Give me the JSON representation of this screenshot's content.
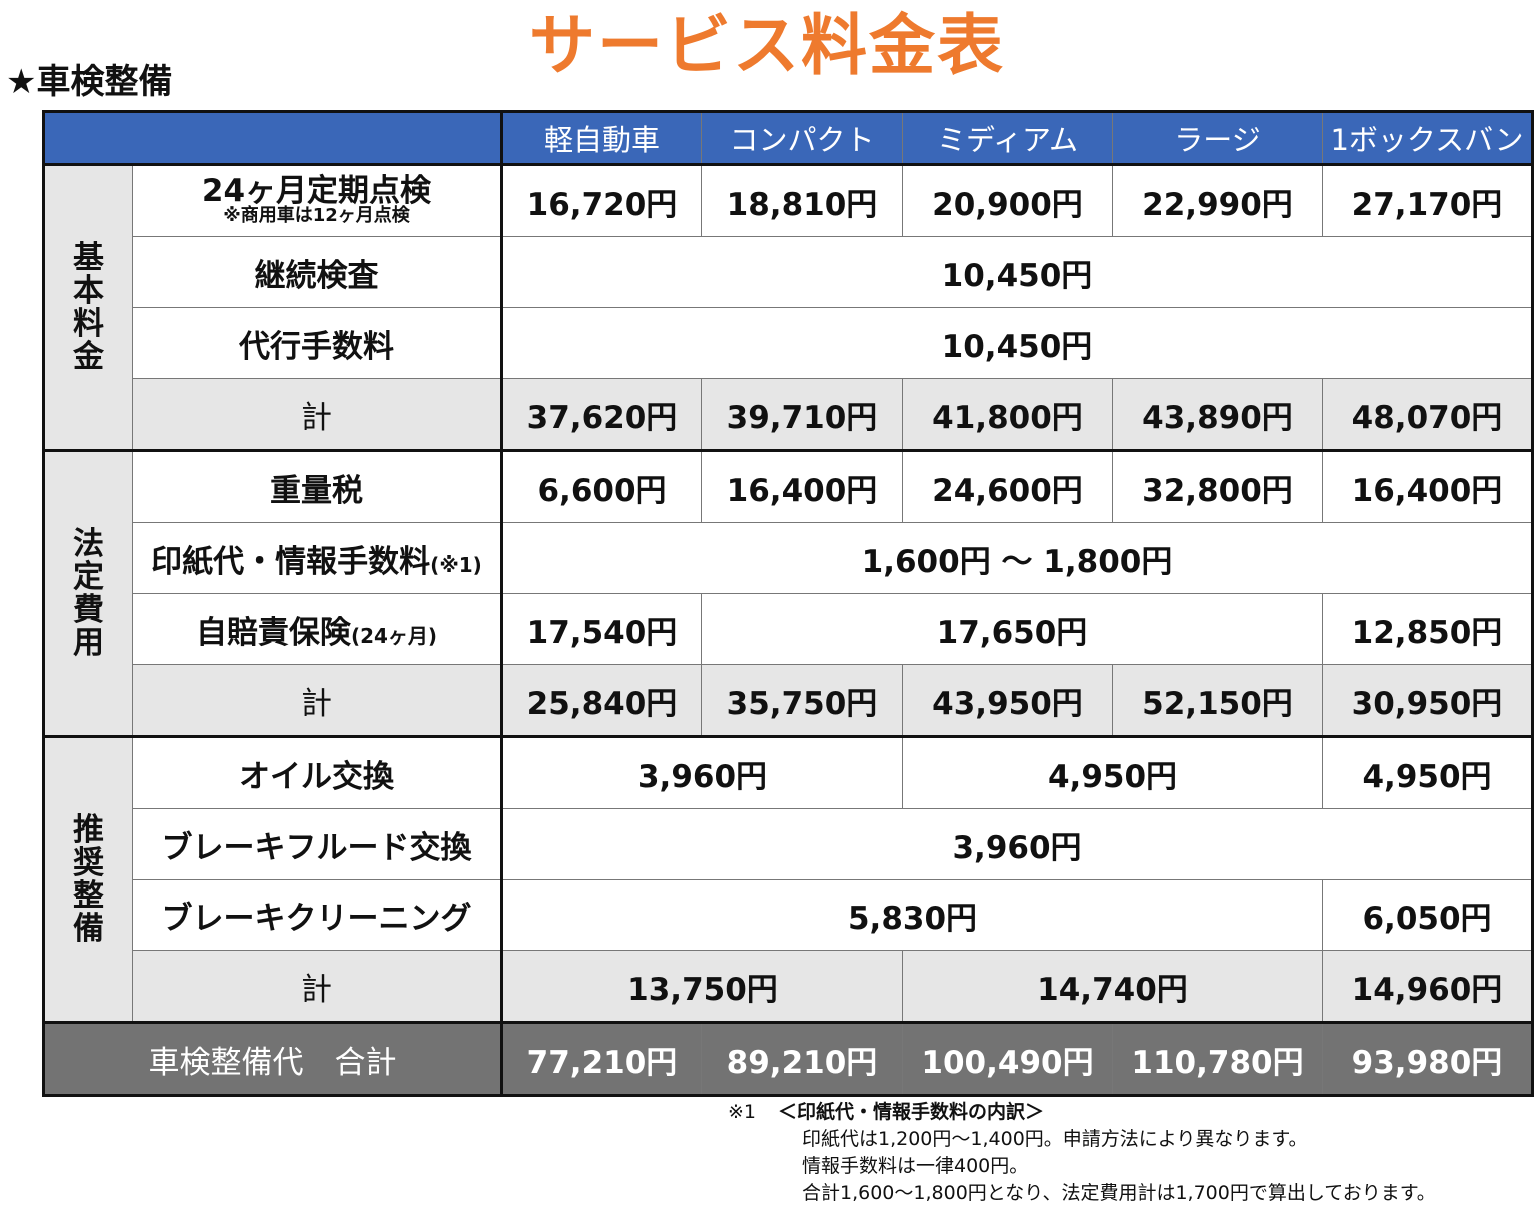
{
  "title": "サービス料金表",
  "section": "★車検整備",
  "columns": [
    "軽自動車",
    "コンパクト",
    "ミディアム",
    "ラージ",
    "1ボックスバン"
  ],
  "groups": {
    "basic": [
      "基",
      "本",
      "料",
      "金"
    ],
    "legal": [
      "法",
      "定",
      "費",
      "用"
    ],
    "recommended": [
      "推",
      "奨",
      "整",
      "備"
    ]
  },
  "rows": {
    "periodic": {
      "label": "24ヶ月定期点検",
      "note": "※商用車は12ヶ月点検",
      "values": [
        "16,720円",
        "18,810円",
        "20,900円",
        "22,990円",
        "27,170円"
      ]
    },
    "inspection": {
      "label": "継続検査",
      "value": "10,450円"
    },
    "agency": {
      "label": "代行手数料",
      "value": "10,450円"
    },
    "basic_total": {
      "label": "計",
      "values": [
        "37,620円",
        "39,710円",
        "41,800円",
        "43,890円",
        "48,070円"
      ]
    },
    "weight_tax": {
      "label": "重量税",
      "values": [
        "6,600円",
        "16,400円",
        "24,600円",
        "32,800円",
        "16,400円"
      ]
    },
    "stamp": {
      "label": "印紙代・情報手数料",
      "label_note": "(※1)",
      "value": "1,600円 ～ 1,800円"
    },
    "insurance": {
      "label": "自賠責保険",
      "label_note": "(24ヶ月)",
      "values": [
        "17,540円",
        "17,650円",
        "12,850円"
      ]
    },
    "legal_total": {
      "label": "計",
      "values": [
        "25,840円",
        "35,750円",
        "43,950円",
        "52,150円",
        "30,950円"
      ]
    },
    "oil": {
      "label": "オイル交換",
      "values": [
        "3,960円",
        "4,950円",
        "4,950円"
      ]
    },
    "brake_fluid": {
      "label": "ブレーキフルード交換",
      "value": "3,960円"
    },
    "brake_clean": {
      "label": "ブレーキクリーニング",
      "values": [
        "5,830円",
        "6,050円"
      ]
    },
    "rec_total": {
      "label": "計",
      "values": [
        "13,750円",
        "14,740円",
        "14,960円"
      ]
    },
    "grand_total": {
      "label": "車検整備代　合計",
      "values": [
        "77,210円",
        "89,210円",
        "100,490円",
        "110,780円",
        "93,980円"
      ]
    }
  },
  "notes": {
    "mark": "※1",
    "heading": "＜印紙代・情報手数料の内訳＞",
    "lines": [
      "印紙代は1,200円～1,400円。申請方法により異なります。",
      "情報手数料は一律400円。",
      "合計1,600～1,800円となり、法定費用計は1,700円で算出しております。"
    ]
  }
}
